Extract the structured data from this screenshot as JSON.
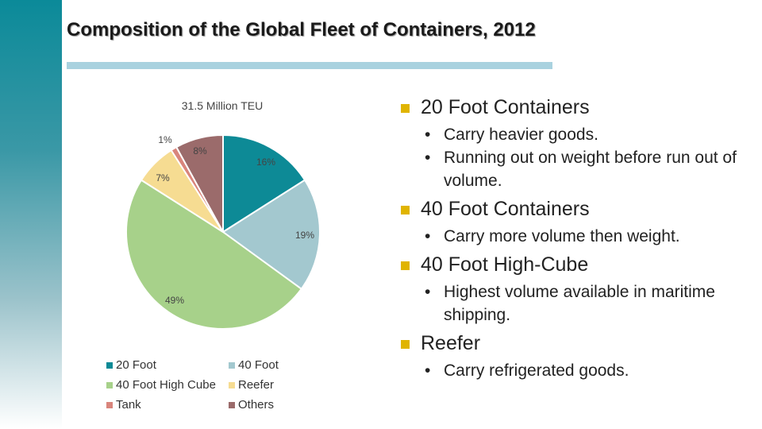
{
  "slide": {
    "title": "Composition of the Global Fleet of Containers, 2012"
  },
  "chart_data": {
    "type": "pie",
    "title": "31.5 Million TEU",
    "slices": [
      {
        "label": "20 Foot",
        "value": 16,
        "data_label": "16%",
        "color": "#0d8a96"
      },
      {
        "label": "40 Foot",
        "value": 19,
        "data_label": "19%",
        "color": "#a3c8cf"
      },
      {
        "label": "40 Foot High Cube",
        "value": 49,
        "data_label": "49%",
        "color": "#a7d18a"
      },
      {
        "label": "Reefer",
        "value": 7,
        "data_label": "7%",
        "color": "#f6dc92"
      },
      {
        "label": "Tank",
        "value": 1,
        "data_label": "1%",
        "color": "#d9857c"
      },
      {
        "label": "Others",
        "value": 8,
        "data_label": "8%",
        "color": "#9b6b6b"
      }
    ],
    "legend_position": "bottom"
  },
  "bullets": [
    {
      "heading": "20 Foot Containers",
      "items": [
        "Carry heavier goods.",
        "Running out on weight before run out of volume."
      ]
    },
    {
      "heading": "40 Foot Containers",
      "items": [
        "Carry more volume then weight."
      ]
    },
    {
      "heading": "40 Foot High-Cube",
      "items": [
        "Highest volume available in maritime shipping."
      ]
    },
    {
      "heading": "Reefer",
      "items": [
        "Carry refrigerated goods."
      ]
    }
  ],
  "colors": {
    "accent_bar": "#a9d2df",
    "bullet_square": "#e0b400",
    "side_gradient_top": "#0b8a99"
  }
}
